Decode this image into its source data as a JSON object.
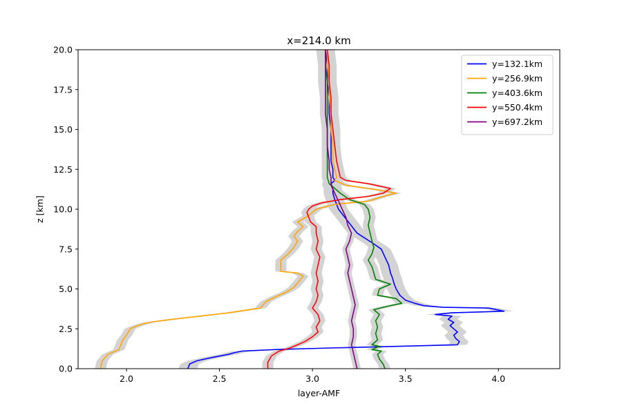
{
  "chart_data": {
    "type": "line",
    "title": "x=214.0 km",
    "xlabel": "layer-AMF",
    "ylabel": "z [km]",
    "xlim": [
      1.74,
      4.33
    ],
    "ylim": [
      0,
      20
    ],
    "xticks": [
      2.0,
      2.5,
      3.0,
      3.5,
      4.0
    ],
    "xtick_labels": [
      "2.0",
      "2.5",
      "3.0",
      "3.5",
      "4.0"
    ],
    "yticks": [
      0,
      2.5,
      5,
      7.5,
      10,
      12.5,
      15,
      17.5,
      20
    ],
    "ytick_labels": [
      "0.0",
      "2.5",
      "5.0",
      "7.5",
      "10.0",
      "12.5",
      "15.0",
      "17.5",
      "20.0"
    ],
    "grid": false,
    "legend_position": "top-right",
    "band_color": "#d3d3d3",
    "series": [
      {
        "name": "y=132.1km",
        "color": "#0000ff",
        "band": 0.05,
        "points": [
          [
            2.33,
            0
          ],
          [
            2.34,
            0.3
          ],
          [
            2.38,
            0.5
          ],
          [
            2.46,
            0.7
          ],
          [
            2.55,
            0.9
          ],
          [
            2.58,
            1.0
          ],
          [
            2.62,
            1.1
          ],
          [
            2.8,
            1.2
          ],
          [
            3.1,
            1.3
          ],
          [
            3.45,
            1.4
          ],
          [
            3.78,
            1.5
          ],
          [
            3.79,
            1.7
          ],
          [
            3.77,
            1.9
          ],
          [
            3.76,
            2.1
          ],
          [
            3.78,
            2.3
          ],
          [
            3.76,
            2.5
          ],
          [
            3.74,
            2.7
          ],
          [
            3.76,
            2.9
          ],
          [
            3.73,
            3.1
          ],
          [
            3.75,
            3.3
          ],
          [
            3.66,
            3.4
          ],
          [
            3.75,
            3.5
          ],
          [
            4.03,
            3.6
          ],
          [
            3.95,
            3.8
          ],
          [
            3.7,
            3.85
          ],
          [
            3.6,
            3.95
          ],
          [
            3.55,
            4.1
          ],
          [
            3.5,
            4.3
          ],
          [
            3.47,
            4.6
          ],
          [
            3.45,
            5.0
          ],
          [
            3.44,
            5.3
          ],
          [
            3.43,
            5.7
          ],
          [
            3.42,
            6.0
          ],
          [
            3.41,
            6.5
          ],
          [
            3.39,
            7.0
          ],
          [
            3.37,
            7.5
          ],
          [
            3.32,
            7.9
          ],
          [
            3.28,
            8.2
          ],
          [
            3.24,
            8.5
          ],
          [
            3.22,
            8.8
          ],
          [
            3.2,
            9.1
          ],
          [
            3.18,
            9.4
          ],
          [
            3.16,
            9.7
          ],
          [
            3.14,
            10.0
          ],
          [
            3.13,
            10.3
          ],
          [
            3.12,
            10.6
          ],
          [
            3.11,
            11.0
          ],
          [
            3.11,
            11.3
          ],
          [
            3.1,
            11.6
          ],
          [
            3.12,
            11.8
          ],
          [
            3.11,
            12.0
          ],
          [
            3.11,
            12.5
          ],
          [
            3.1,
            13.0
          ],
          [
            3.1,
            13.5
          ],
          [
            3.1,
            14.0
          ],
          [
            3.1,
            14.5
          ],
          [
            3.1,
            15.0
          ],
          [
            3.09,
            16.0
          ],
          [
            3.09,
            17.0
          ],
          [
            3.08,
            18.0
          ],
          [
            3.08,
            19.0
          ],
          [
            3.07,
            20.0
          ]
        ]
      },
      {
        "name": "y=256.9km",
        "color": "#ffa500",
        "band": 0.03,
        "points": [
          [
            1.86,
            0
          ],
          [
            1.87,
            0.5
          ],
          [
            1.9,
            0.9
          ],
          [
            1.96,
            1.2
          ],
          [
            1.97,
            1.5
          ],
          [
            1.98,
            1.8
          ],
          [
            2.0,
            2.1
          ],
          [
            2.02,
            2.5
          ],
          [
            2.06,
            2.7
          ],
          [
            2.12,
            2.9
          ],
          [
            2.25,
            3.1
          ],
          [
            2.4,
            3.3
          ],
          [
            2.55,
            3.5
          ],
          [
            2.72,
            3.8
          ],
          [
            2.75,
            4.2
          ],
          [
            2.8,
            4.5
          ],
          [
            2.86,
            4.8
          ],
          [
            2.9,
            5.1
          ],
          [
            2.93,
            5.5
          ],
          [
            2.95,
            5.8
          ],
          [
            2.92,
            6.0
          ],
          [
            2.83,
            6.1
          ],
          [
            2.83,
            6.4
          ],
          [
            2.83,
            6.8
          ],
          [
            2.87,
            7.2
          ],
          [
            2.9,
            7.6
          ],
          [
            2.92,
            8.0
          ],
          [
            2.9,
            8.3
          ],
          [
            2.92,
            8.6
          ],
          [
            2.95,
            8.9
          ],
          [
            2.92,
            9.2
          ],
          [
            2.95,
            9.4
          ],
          [
            2.98,
            9.6
          ],
          [
            3.0,
            9.8
          ],
          [
            3.02,
            10.0
          ],
          [
            3.12,
            10.3
          ],
          [
            3.3,
            10.5
          ],
          [
            3.38,
            10.8
          ],
          [
            3.45,
            11.0
          ],
          [
            3.36,
            11.2
          ],
          [
            3.18,
            11.5
          ],
          [
            3.12,
            11.8
          ],
          [
            3.13,
            12.0
          ],
          [
            3.12,
            12.5
          ],
          [
            3.11,
            13.0
          ],
          [
            3.11,
            13.5
          ],
          [
            3.11,
            14.0
          ],
          [
            3.1,
            15.0
          ],
          [
            3.1,
            16.0
          ],
          [
            3.09,
            17.0
          ],
          [
            3.09,
            18.0
          ],
          [
            3.08,
            19.0
          ],
          [
            3.08,
            20.0
          ]
        ]
      },
      {
        "name": "y=403.6km",
        "color": "#008000",
        "band": 0.03,
        "points": [
          [
            3.39,
            0
          ],
          [
            3.38,
            0.3
          ],
          [
            3.36,
            0.6
          ],
          [
            3.35,
            0.9
          ],
          [
            3.37,
            1.1
          ],
          [
            3.32,
            1.2
          ],
          [
            3.36,
            1.4
          ],
          [
            3.32,
            1.5
          ],
          [
            3.35,
            1.8
          ],
          [
            3.34,
            2.2
          ],
          [
            3.35,
            2.6
          ],
          [
            3.34,
            3.0
          ],
          [
            3.36,
            3.4
          ],
          [
            3.33,
            3.7
          ],
          [
            3.4,
            3.9
          ],
          [
            3.48,
            4.1
          ],
          [
            3.45,
            4.4
          ],
          [
            3.35,
            4.6
          ],
          [
            3.36,
            5.0
          ],
          [
            3.42,
            5.3
          ],
          [
            3.34,
            5.6
          ],
          [
            3.33,
            6.0
          ],
          [
            3.32,
            6.4
          ],
          [
            3.3,
            6.8
          ],
          [
            3.32,
            7.2
          ],
          [
            3.33,
            7.6
          ],
          [
            3.32,
            8.0
          ],
          [
            3.31,
            8.5
          ],
          [
            3.3,
            9.0
          ],
          [
            3.31,
            9.5
          ],
          [
            3.3,
            10.0
          ],
          [
            3.28,
            10.3
          ],
          [
            3.2,
            10.6
          ],
          [
            3.15,
            11.0
          ],
          [
            3.12,
            11.3
          ],
          [
            3.09,
            11.6
          ],
          [
            3.08,
            12.0
          ],
          [
            3.08,
            12.5
          ],
          [
            3.08,
            13.0
          ],
          [
            3.08,
            14.0
          ],
          [
            3.08,
            15.0
          ],
          [
            3.08,
            16.0
          ],
          [
            3.08,
            17.0
          ],
          [
            3.08,
            18.0
          ],
          [
            3.07,
            19.0
          ],
          [
            3.07,
            20.0
          ]
        ]
      },
      {
        "name": "y=550.4km",
        "color": "#ff0000",
        "band": 0.03,
        "points": [
          [
            2.76,
            0
          ],
          [
            2.76,
            0.4
          ],
          [
            2.78,
            0.8
          ],
          [
            2.82,
            1.1
          ],
          [
            2.88,
            1.3
          ],
          [
            2.92,
            1.5
          ],
          [
            2.96,
            1.7
          ],
          [
            3.0,
            2.0
          ],
          [
            3.03,
            2.3
          ],
          [
            3.02,
            2.6
          ],
          [
            3.04,
            3.0
          ],
          [
            3.03,
            3.4
          ],
          [
            3.0,
            3.8
          ],
          [
            3.02,
            4.2
          ],
          [
            3.03,
            4.6
          ],
          [
            3.02,
            5.0
          ],
          [
            3.03,
            5.5
          ],
          [
            3.02,
            6.0
          ],
          [
            3.03,
            6.5
          ],
          [
            3.04,
            7.0
          ],
          [
            3.02,
            7.5
          ],
          [
            3.03,
            8.0
          ],
          [
            3.02,
            8.5
          ],
          [
            3.02,
            8.9
          ],
          [
            2.99,
            9.2
          ],
          [
            2.98,
            9.5
          ],
          [
            2.97,
            9.8
          ],
          [
            2.98,
            10.0
          ],
          [
            3.0,
            10.2
          ],
          [
            3.05,
            10.4
          ],
          [
            3.15,
            10.6
          ],
          [
            3.3,
            10.8
          ],
          [
            3.38,
            11.0
          ],
          [
            3.42,
            11.3
          ],
          [
            3.3,
            11.6
          ],
          [
            3.18,
            11.8
          ],
          [
            3.15,
            12.0
          ],
          [
            3.14,
            12.5
          ],
          [
            3.13,
            13.0
          ],
          [
            3.12,
            14.0
          ],
          [
            3.11,
            15.0
          ],
          [
            3.1,
            16.0
          ],
          [
            3.1,
            17.0
          ],
          [
            3.09,
            18.0
          ],
          [
            3.09,
            19.0
          ],
          [
            3.08,
            20.0
          ]
        ]
      },
      {
        "name": "y=697.2km",
        "color": "#800080",
        "band": 0.02,
        "points": [
          [
            3.24,
            0
          ],
          [
            3.23,
            0.5
          ],
          [
            3.22,
            1.0
          ],
          [
            3.21,
            1.5
          ],
          [
            3.22,
            2.0
          ],
          [
            3.22,
            2.5
          ],
          [
            3.21,
            3.0
          ],
          [
            3.22,
            3.5
          ],
          [
            3.23,
            4.0
          ],
          [
            3.22,
            4.5
          ],
          [
            3.21,
            5.0
          ],
          [
            3.2,
            5.5
          ],
          [
            3.19,
            6.0
          ],
          [
            3.2,
            6.5
          ],
          [
            3.19,
            7.0
          ],
          [
            3.18,
            7.5
          ],
          [
            3.2,
            8.0
          ],
          [
            3.21,
            8.5
          ],
          [
            3.19,
            9.0
          ],
          [
            3.18,
            9.5
          ],
          [
            3.16,
            10.0
          ],
          [
            3.14,
            10.5
          ],
          [
            3.12,
            11.0
          ],
          [
            3.1,
            11.5
          ],
          [
            3.1,
            12.0
          ],
          [
            3.09,
            12.5
          ],
          [
            3.09,
            13.0
          ],
          [
            3.08,
            14.0
          ],
          [
            3.08,
            15.0
          ],
          [
            3.07,
            16.0
          ],
          [
            3.07,
            17.0
          ],
          [
            3.07,
            18.0
          ],
          [
            3.07,
            19.0
          ],
          [
            3.07,
            20.0
          ]
        ]
      }
    ]
  }
}
